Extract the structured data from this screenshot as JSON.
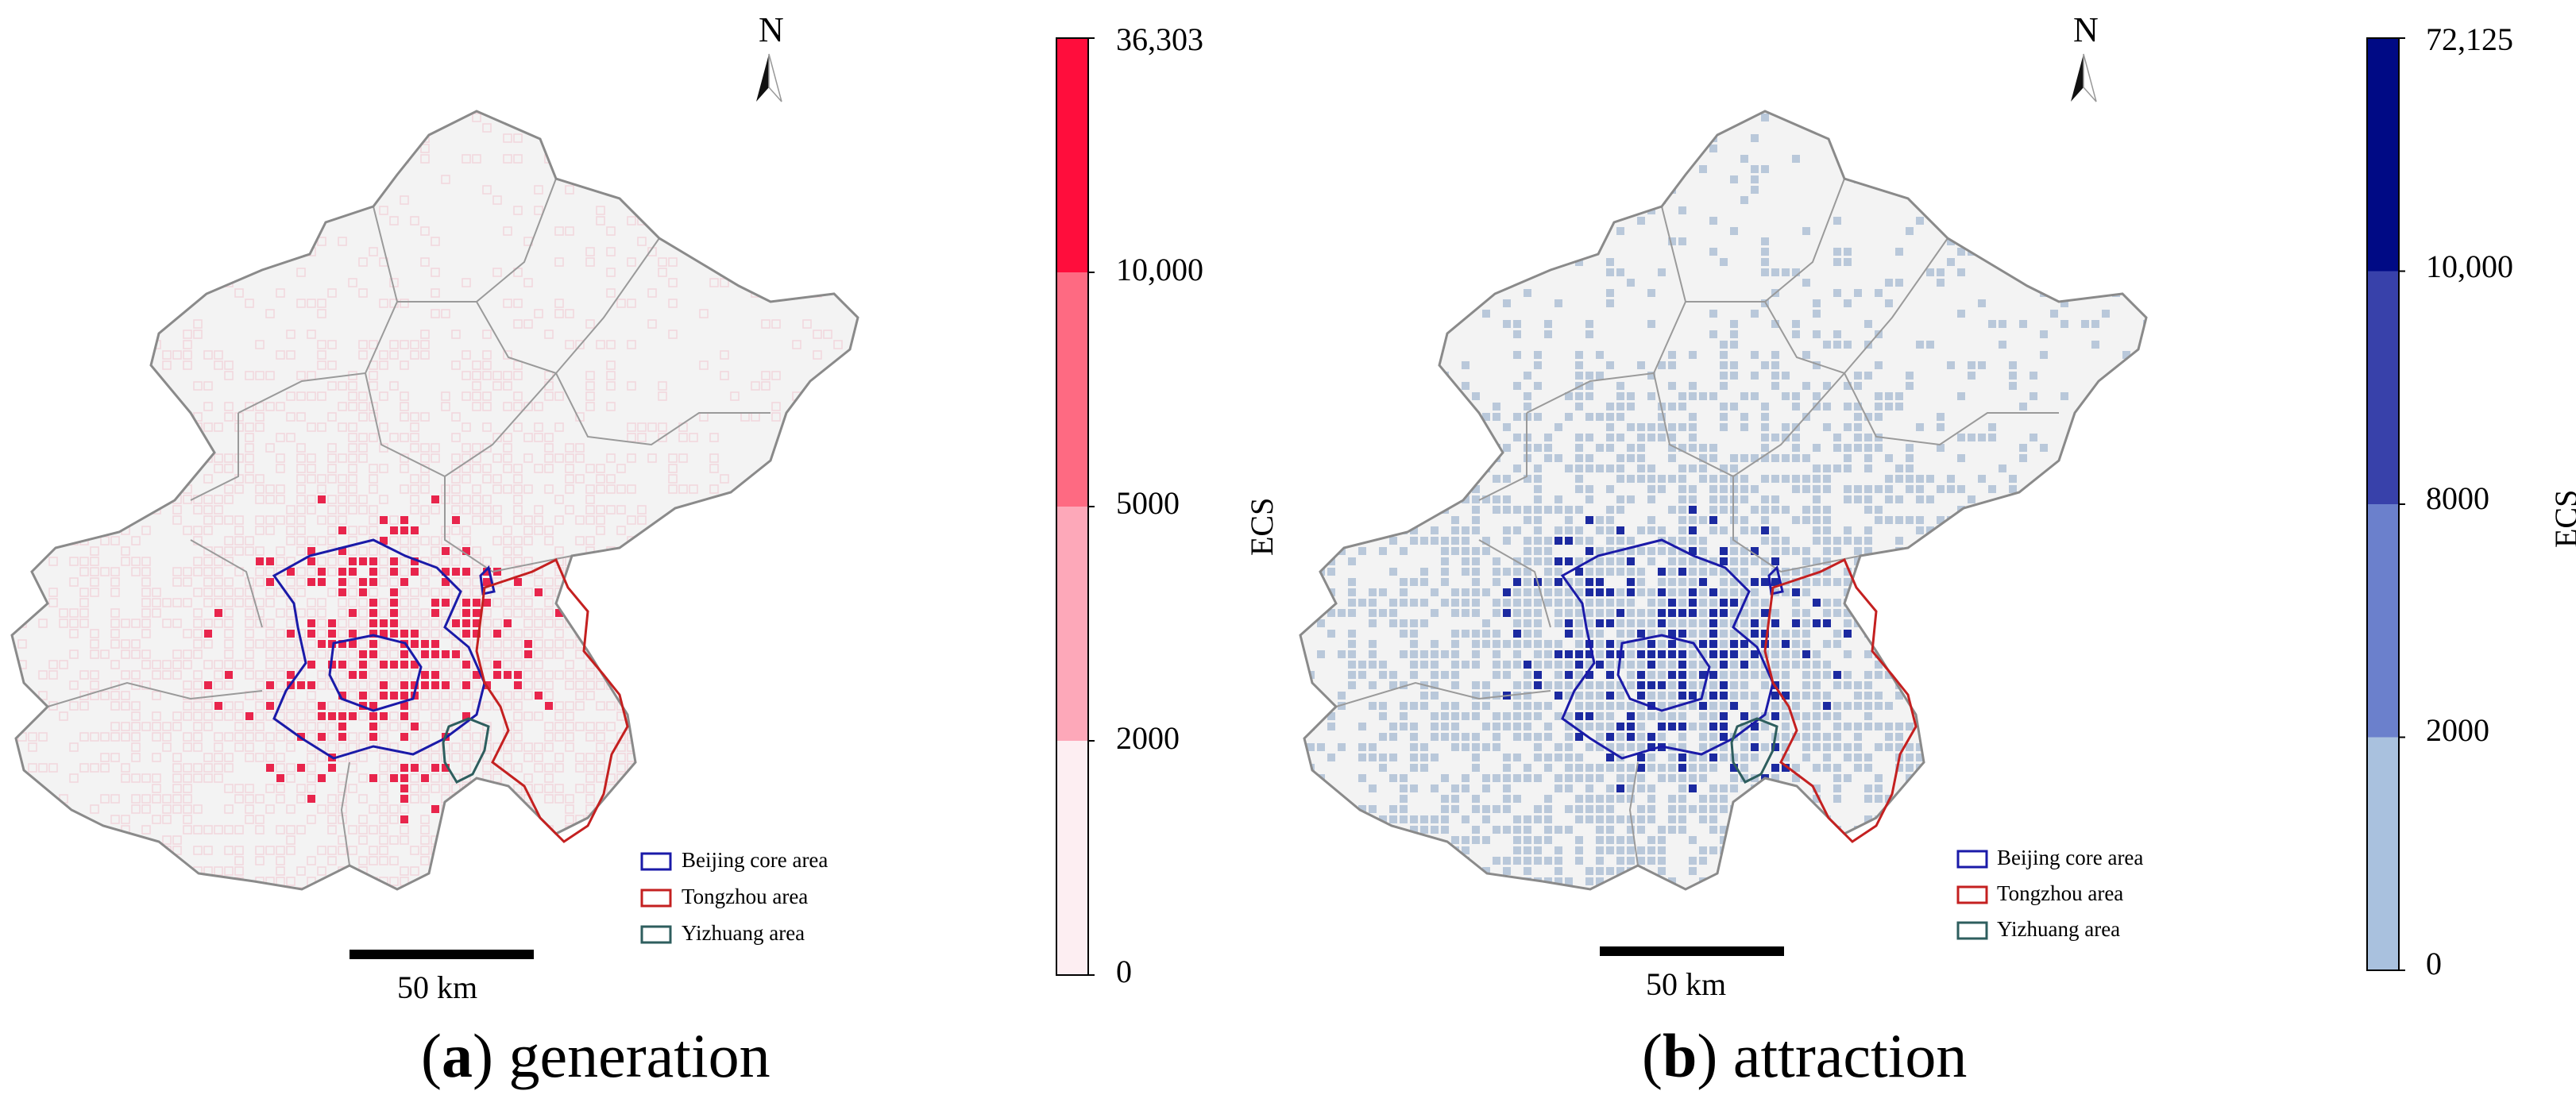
{
  "panels": [
    {
      "letter": "a",
      "caption": "generation",
      "north": "N",
      "scale": "50 km",
      "colorbar": {
        "unit": "ECS",
        "ticks": [
          "36,303",
          "10,000",
          "5000",
          "2000",
          "0"
        ],
        "classes": [
          {
            "min": 0,
            "max": 2000,
            "color": "#fdeef2"
          },
          {
            "min": 2000,
            "max": 5000,
            "color": "#fda8b9"
          },
          {
            "min": 5000,
            "max": 10000,
            "color": "#fe6a82"
          },
          {
            "min": 10000,
            "max": 36303,
            "color": "#ff0d3c"
          }
        ]
      },
      "legend": [
        {
          "label": "Beijing core area",
          "color": "#1a1aa8"
        },
        {
          "label": "Tongzhou area",
          "color": "#c42020"
        },
        {
          "label": "Yizhuang area",
          "color": "#2e5e5e"
        }
      ],
      "cell_color": "#f2d6dc",
      "hot_color": "#e8254c"
    },
    {
      "letter": "b",
      "caption": "attraction",
      "north": "N",
      "scale": "50 km",
      "colorbar": {
        "unit": "ECS",
        "ticks": [
          "72,125",
          "10,000",
          "8000",
          "2000",
          "0"
        ],
        "classes": [
          {
            "min": 0,
            "max": 2000,
            "color": "#a9c1de"
          },
          {
            "min": 2000,
            "max": 8000,
            "color": "#6b80cc"
          },
          {
            "min": 8000,
            "max": 10000,
            "color": "#3841aa"
          },
          {
            "min": 10000,
            "max": 72125,
            "color": "#000a85"
          }
        ]
      },
      "legend": [
        {
          "label": "Beijing core area",
          "color": "#1a1aa8"
        },
        {
          "label": "Tongzhou area",
          "color": "#c42020"
        },
        {
          "label": "Yizhuang area",
          "color": "#2e5e5e"
        }
      ],
      "cell_color": "#b9c8da",
      "hot_color": "#1c2aa0"
    }
  ]
}
